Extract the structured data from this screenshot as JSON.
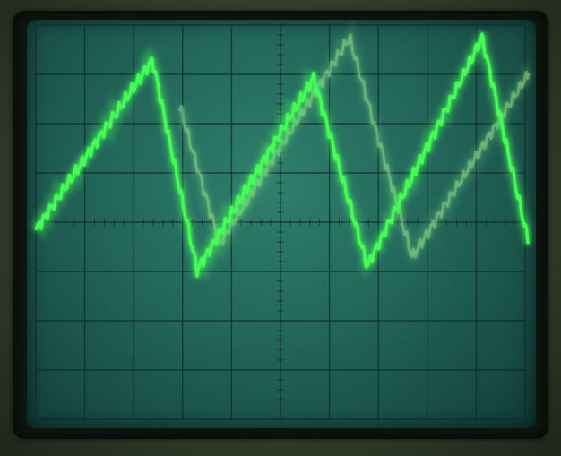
{
  "scene": {
    "subject": "oscilloscope-screen",
    "graticule": {
      "divisions_x": 10,
      "divisions_y": 8,
      "minor_ticks_per_division": 5
    },
    "trace": {
      "color": "#44ff55",
      "ghost_color": "#8fe58a"
    },
    "screen_color": "#22665a",
    "bezel_color": "#10170f"
  }
}
